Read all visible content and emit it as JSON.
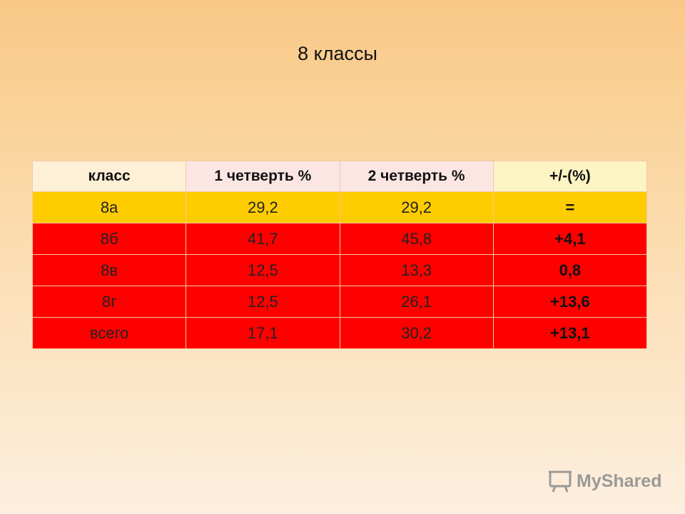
{
  "header": {
    "title": "8 классы"
  },
  "table": {
    "header": [
      "класс",
      "1 четверть %",
      "2 четверть %",
      "+/-(%)"
    ],
    "rows": [
      [
        "8а",
        "29,2",
        "29,2",
        "="
      ],
      [
        "8б",
        "41,7",
        "45,8",
        "+4,1"
      ],
      [
        "8в",
        "12,5",
        "13,3",
        "0,8"
      ],
      [
        "8г",
        "12,5",
        "26,1",
        "+13,6"
      ],
      [
        "всего",
        "17,1",
        "30,2",
        "+13,1"
      ]
    ]
  },
  "watermark": {
    "text": "MyShared"
  }
}
